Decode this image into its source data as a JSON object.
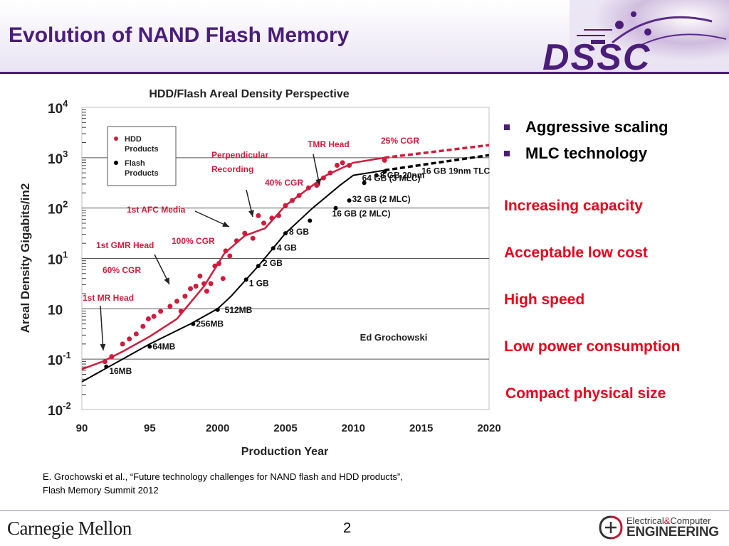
{
  "slide": {
    "title": "Evolution of NAND Flash Memory",
    "page_number": "2",
    "logo_text": "DSSC",
    "footer_left": "Carnegie Mellon",
    "footer_right_top": "Electrical",
    "footer_right_amp": "&",
    "footer_right_top2": "Computer",
    "footer_right_bottom": "ENGINEERING",
    "citation_line1": "E. Grochowski et al., “Future technology challenges for NAND flash and HDD products”,",
    "citation_line2": "Flash Memory Summit 2012"
  },
  "bullets": [
    {
      "text": "Aggressive scaling"
    },
    {
      "text": "MLC technology"
    }
  ],
  "highlights": [
    {
      "text": "Increasing capacity"
    },
    {
      "text": "Acceptable low cost"
    },
    {
      "text": "High speed"
    },
    {
      "text": "Low power consumption"
    },
    {
      "text": "Compact physical size"
    }
  ],
  "colors": {
    "title": "#4b1d7a",
    "hdd": "#d01c3c",
    "flash": "#000000",
    "highlight": "#e8001c",
    "annotation": "#d01c3c"
  },
  "chart_data": {
    "type": "scatter",
    "title": "HDD/Flash Areal Density Perspective",
    "xlabel": "Production Year",
    "ylabel": "Areal Density Gigabits/in2",
    "xlim": [
      1990,
      2020
    ],
    "ylim_log10": [
      -2,
      4
    ],
    "log_y": true,
    "x_ticks": [
      "90",
      "95",
      "2000",
      "2005",
      "2010",
      "2015",
      "2020"
    ],
    "x_tick_values": [
      1990,
      1995,
      2000,
      2005,
      2010,
      2015,
      2020
    ],
    "y_ticks": [
      {
        "base": "10",
        "exp": "4",
        "log": 4
      },
      {
        "base": "10",
        "exp": "3",
        "log": 3
      },
      {
        "base": "10",
        "exp": "2",
        "log": 2
      },
      {
        "base": "10",
        "exp": "1",
        "log": 1
      },
      {
        "base": "10",
        "exp": "",
        "log": 0
      },
      {
        "base": "10",
        "exp": "-1",
        "log": -1
      },
      {
        "base": "10",
        "exp": "-2",
        "log": -2
      }
    ],
    "legend": {
      "position": "top-left",
      "entries": [
        {
          "label1": "HDD",
          "label2": "Products",
          "color": "#d01c3c"
        },
        {
          "label1": "Flash",
          "label2": "Products",
          "color": "#000000"
        }
      ]
    },
    "author_note": "Ed Grochowski",
    "series": [
      {
        "name": "HDD Products",
        "color": "#d01c3c",
        "points": [
          [
            1991.7,
            -1.05
          ],
          [
            1992.2,
            -0.95
          ],
          [
            1993.0,
            -0.7
          ],
          [
            1993.5,
            -0.6
          ],
          [
            1994.0,
            -0.5
          ],
          [
            1994.5,
            -0.35
          ],
          [
            1994.9,
            -0.2
          ],
          [
            1995.3,
            -0.15
          ],
          [
            1995.8,
            -0.05
          ],
          [
            1996.5,
            0.05
          ],
          [
            1997.0,
            0.15
          ],
          [
            1997.3,
            -0.05
          ],
          [
            1997.6,
            0.25
          ],
          [
            1998.0,
            0.4
          ],
          [
            1998.4,
            0.45
          ],
          [
            1998.7,
            0.65
          ],
          [
            1999.0,
            0.5
          ],
          [
            1999.2,
            0.35
          ],
          [
            1999.5,
            0.5
          ],
          [
            1999.8,
            0.85
          ],
          [
            2000.1,
            0.9
          ],
          [
            2000.4,
            0.6
          ],
          [
            2000.6,
            1.15
          ],
          [
            2000.9,
            1.05
          ],
          [
            2001.4,
            1.35
          ],
          [
            2002.0,
            1.5
          ],
          [
            2002.6,
            1.4
          ],
          [
            2003.0,
            1.85
          ],
          [
            2003.4,
            1.7
          ],
          [
            2004.0,
            1.8
          ],
          [
            2004.5,
            1.85
          ],
          [
            2005.0,
            2.05
          ],
          [
            2005.5,
            2.15
          ],
          [
            2006.0,
            2.25
          ],
          [
            2006.7,
            2.4
          ],
          [
            2007.3,
            2.45
          ],
          [
            2007.8,
            2.6
          ],
          [
            2008.3,
            2.7
          ],
          [
            2008.8,
            2.85
          ],
          [
            2009.2,
            2.9
          ],
          [
            2009.7,
            2.85
          ],
          [
            2012.3,
            2.95
          ]
        ],
        "trend": [
          [
            1990,
            -1.2
          ],
          [
            1991.5,
            -1.05
          ],
          [
            1993,
            -0.85
          ],
          [
            1995,
            -0.55
          ],
          [
            1997,
            -0.2
          ],
          [
            1999,
            0.45
          ],
          [
            2000.5,
            1.1
          ],
          [
            2002,
            1.45
          ],
          [
            2003.5,
            1.6
          ],
          [
            2005,
            2.05
          ],
          [
            2008,
            2.65
          ],
          [
            2010,
            2.9
          ],
          [
            2012.3,
            3.0
          ]
        ],
        "projection": [
          [
            2012.3,
            3.0
          ],
          [
            2020,
            3.25
          ]
        ]
      },
      {
        "name": "Flash Products",
        "color": "#000000",
        "points": [
          [
            1991.8,
            -1.15
          ],
          [
            1995.0,
            -0.75
          ],
          [
            1998.2,
            -0.3
          ],
          [
            2000.0,
            -0.02
          ],
          [
            2002.1,
            0.58
          ],
          [
            2003.0,
            0.85
          ],
          [
            2004.1,
            1.2
          ],
          [
            2005.0,
            1.5
          ],
          [
            2006.8,
            1.75
          ],
          [
            2008.7,
            2.0
          ],
          [
            2009.7,
            2.15
          ],
          [
            2010.8,
            2.5
          ],
          [
            2011.7,
            2.65
          ],
          [
            2012.3,
            2.72
          ]
        ],
        "trend": [
          [
            1990,
            -1.45
          ],
          [
            1992,
            -1.15
          ],
          [
            1995,
            -0.7
          ],
          [
            1998,
            -0.3
          ],
          [
            2000,
            0.0
          ],
          [
            2001,
            0.25
          ],
          [
            2003,
            0.85
          ],
          [
            2005,
            1.5
          ],
          [
            2007,
            2.0
          ],
          [
            2009,
            2.45
          ],
          [
            2010,
            2.65
          ],
          [
            2012.3,
            2.75
          ]
        ],
        "projection": [
          [
            2012.3,
            2.75
          ],
          [
            2020,
            3.05
          ]
        ]
      }
    ],
    "flash_labels": [
      {
        "text": "16MB",
        "x": 1991.8,
        "y": -1.15
      },
      {
        "text": "64MB",
        "x": 1995.0,
        "y": -0.75
      },
      {
        "text": "256MB",
        "x": 1998.2,
        "y": -0.3
      },
      {
        "text": "512MB",
        "x": 2000.0,
        "y": -0.02
      },
      {
        "text": "1 GB",
        "x": 2002.1,
        "y": 0.58
      },
      {
        "text": "2 GB",
        "x": 2003.0,
        "y": 0.85
      },
      {
        "text": "4 GB",
        "x": 2004.1,
        "y": 1.2
      },
      {
        "text": "8 GB",
        "x": 2005.0,
        "y": 1.5
      },
      {
        "text": "16 GB (2 MLC)",
        "x": 2008.7,
        "y": 2.0
      },
      {
        "text": "32 GB (2 MLC)",
        "x": 2009.7,
        "y": 2.15
      },
      {
        "text": "64 GB (3 MLC)",
        "x": 2010.8,
        "y": 2.5
      },
      {
        "text": "8 GB 20nm",
        "x": 2011.7,
        "y": 2.65
      },
      {
        "text": "16 GB 19nm TLC",
        "x": 2012.3,
        "y": 2.72
      }
    ],
    "annotations": [
      {
        "text": "1st MR Head",
        "x": 1992.0,
        "y": -1.0
      },
      {
        "text": "60% CGR"
      },
      {
        "text": "1st GMR Head",
        "x": 1997.8,
        "y": 0.35
      },
      {
        "text": "100% CGR"
      },
      {
        "text": "1st AFC Media",
        "x": 2001.8,
        "y": 1.45
      },
      {
        "text": "Perpendicular",
        "text2": "Recording",
        "x": 2003.0,
        "y": 1.75
      },
      {
        "text": "40% CGR"
      },
      {
        "text": "TMR Head",
        "x": 2007.5,
        "y": 2.45
      },
      {
        "text": "25% CGR"
      }
    ]
  }
}
